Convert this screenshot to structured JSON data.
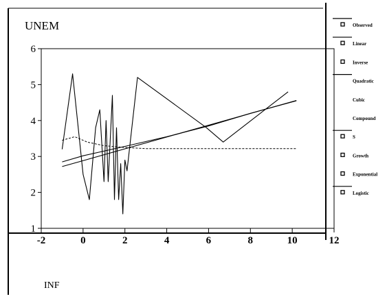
{
  "chart_data": {
    "type": "line",
    "ylabel": "UNEM",
    "xlabel": "INF",
    "xlim": [
      -2,
      12
    ],
    "ylim": [
      1,
      6
    ],
    "xticks": [
      -2,
      0,
      2,
      4,
      6,
      8,
      10,
      12
    ],
    "yticks": [
      1,
      2,
      3,
      4,
      5,
      6
    ],
    "legend_position": "right",
    "legend": [
      "Observed",
      "Linear",
      "Inverse",
      "Quadratic",
      "Cubic",
      "Compound",
      "S",
      "Growth",
      "Exponential",
      "Logistic"
    ],
    "series": [
      {
        "name": "Observed",
        "x": [
          -1.0,
          -0.5,
          0.0,
          0.3,
          0.6,
          0.8,
          1.0,
          1.1,
          1.2,
          1.4,
          1.5,
          1.6,
          1.7,
          1.8,
          1.9,
          2.0,
          2.1,
          2.6,
          5.9,
          6.7,
          9.8
        ],
        "y": [
          3.2,
          5.3,
          2.5,
          1.8,
          3.8,
          4.3,
          2.3,
          4.0,
          2.3,
          4.7,
          1.8,
          3.8,
          1.8,
          2.8,
          1.4,
          2.9,
          2.6,
          5.2,
          3.8,
          3.4,
          4.8
        ]
      },
      {
        "name": "Linear",
        "x": [
          -1.0,
          10.2
        ],
        "y": [
          2.72,
          4.56
        ]
      },
      {
        "name": "Cubic",
        "x": [
          -1.0,
          0.0,
          2.0,
          4.0,
          6.0,
          8.0,
          10.2
        ],
        "y": [
          2.85,
          3.02,
          3.28,
          3.55,
          3.85,
          4.2,
          4.55
        ]
      },
      {
        "name": "S",
        "x": [
          -1.0,
          -0.4,
          0.2,
          1.0,
          2.0,
          3.0,
          4.0,
          6.0,
          8.0,
          10.2
        ],
        "y": [
          3.45,
          3.55,
          3.4,
          3.3,
          3.25,
          3.22,
          3.22,
          3.22,
          3.22,
          3.22
        ]
      }
    ]
  }
}
